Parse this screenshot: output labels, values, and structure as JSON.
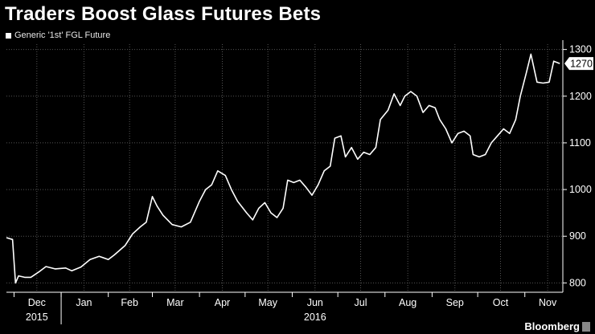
{
  "chart_data": {
    "type": "line",
    "title": "Traders Boost Glass Futures Bets",
    "legend": [
      "Generic '1st' FGL Future"
    ],
    "series": [
      {
        "name": "Generic '1st' FGL Future",
        "points": [
          [
            "2015-11-26",
            897
          ],
          [
            "2015-11-30",
            893
          ],
          [
            "2015-12-02",
            800
          ],
          [
            "2015-12-04",
            815
          ],
          [
            "2015-12-08",
            812
          ],
          [
            "2015-12-12",
            812
          ],
          [
            "2015-12-18",
            825
          ],
          [
            "2015-12-22",
            835
          ],
          [
            "2015-12-28",
            830
          ],
          [
            "2016-01-04",
            832
          ],
          [
            "2016-01-08",
            826
          ],
          [
            "2016-01-14",
            834
          ],
          [
            "2016-01-20",
            850
          ],
          [
            "2016-01-26",
            857
          ],
          [
            "2016-02-01",
            850
          ],
          [
            "2016-02-05",
            860
          ],
          [
            "2016-02-12",
            880
          ],
          [
            "2016-02-17",
            905
          ],
          [
            "2016-02-22",
            920
          ],
          [
            "2016-02-26",
            930
          ],
          [
            "2016-03-01",
            985
          ],
          [
            "2016-03-04",
            965
          ],
          [
            "2016-03-08",
            945
          ],
          [
            "2016-03-14",
            925
          ],
          [
            "2016-03-20",
            920
          ],
          [
            "2016-03-26",
            930
          ],
          [
            "2016-04-01",
            975
          ],
          [
            "2016-04-05",
            1000
          ],
          [
            "2016-04-09",
            1010
          ],
          [
            "2016-04-13",
            1040
          ],
          [
            "2016-04-18",
            1030
          ],
          [
            "2016-04-22",
            1000
          ],
          [
            "2016-04-26",
            975
          ],
          [
            "2016-05-02",
            950
          ],
          [
            "2016-05-06",
            935
          ],
          [
            "2016-05-10",
            960
          ],
          [
            "2016-05-14",
            972
          ],
          [
            "2016-05-18",
            950
          ],
          [
            "2016-05-22",
            940
          ],
          [
            "2016-05-26",
            960
          ],
          [
            "2016-05-29",
            1020
          ],
          [
            "2016-06-02",
            1015
          ],
          [
            "2016-06-06",
            1020
          ],
          [
            "2016-06-10",
            1005
          ],
          [
            "2016-06-14",
            988
          ],
          [
            "2016-06-18",
            1010
          ],
          [
            "2016-06-22",
            1040
          ],
          [
            "2016-06-26",
            1050
          ],
          [
            "2016-06-29",
            1110
          ],
          [
            "2016-07-03",
            1115
          ],
          [
            "2016-07-06",
            1070
          ],
          [
            "2016-07-10",
            1090
          ],
          [
            "2016-07-14",
            1065
          ],
          [
            "2016-07-18",
            1080
          ],
          [
            "2016-07-22",
            1075
          ],
          [
            "2016-07-26",
            1090
          ],
          [
            "2016-07-29",
            1150
          ],
          [
            "2016-08-03",
            1170
          ],
          [
            "2016-08-07",
            1205
          ],
          [
            "2016-08-11",
            1180
          ],
          [
            "2016-08-14",
            1200
          ],
          [
            "2016-08-18",
            1210
          ],
          [
            "2016-08-22",
            1200
          ],
          [
            "2016-08-26",
            1165
          ],
          [
            "2016-08-30",
            1180
          ],
          [
            "2016-09-03",
            1175
          ],
          [
            "2016-09-06",
            1150
          ],
          [
            "2016-09-10",
            1130
          ],
          [
            "2016-09-14",
            1100
          ],
          [
            "2016-09-18",
            1120
          ],
          [
            "2016-09-22",
            1125
          ],
          [
            "2016-09-26",
            1115
          ],
          [
            "2016-09-28",
            1075
          ],
          [
            "2016-10-02",
            1070
          ],
          [
            "2016-10-06",
            1075
          ],
          [
            "2016-10-10",
            1100
          ],
          [
            "2016-10-14",
            1115
          ],
          [
            "2016-10-18",
            1130
          ],
          [
            "2016-10-22",
            1120
          ],
          [
            "2016-10-26",
            1150
          ],
          [
            "2016-10-29",
            1200
          ],
          [
            "2016-11-02",
            1250
          ],
          [
            "2016-11-05",
            1290
          ],
          [
            "2016-11-09",
            1230
          ],
          [
            "2016-11-13",
            1228
          ],
          [
            "2016-11-17",
            1230
          ],
          [
            "2016-11-20",
            1275
          ],
          [
            "2016-11-24",
            1270
          ]
        ]
      }
    ],
    "y_ticks": [
      800,
      900,
      1000,
      1100,
      1200,
      1300
    ],
    "ylim": [
      780,
      1320
    ],
    "y_axis_side": "right",
    "last_value_label": "1270",
    "x_start": "2015-11-26",
    "x_end": "2016-11-26",
    "x_ticks": [
      {
        "label": "Dec",
        "date": "2015-12-16"
      },
      {
        "label": "Jan",
        "date": "2016-01-16"
      },
      {
        "label": "Feb",
        "date": "2016-02-15"
      },
      {
        "label": "Mar",
        "date": "2016-03-16"
      },
      {
        "label": "Apr",
        "date": "2016-04-16"
      },
      {
        "label": "May",
        "date": "2016-05-16"
      },
      {
        "label": "Jun",
        "date": "2016-06-16"
      },
      {
        "label": "Jul",
        "date": "2016-07-16"
      },
      {
        "label": "Aug",
        "date": "2016-08-16"
      },
      {
        "label": "Sep",
        "date": "2016-09-16"
      },
      {
        "label": "Oct",
        "date": "2016-10-16"
      },
      {
        "label": "Nov",
        "date": "2016-11-16"
      }
    ],
    "year_labels": [
      {
        "label": "2015",
        "date": "2015-12-16"
      },
      {
        "label": "2016",
        "date": "2016-06-16"
      }
    ],
    "grid": "horizontal dotted"
  },
  "branding": {
    "source": "Bloomberg",
    "badge_color": "#888888"
  },
  "colors": {
    "background": "#000000",
    "line": "#ffffff",
    "grid": "#555555"
  }
}
